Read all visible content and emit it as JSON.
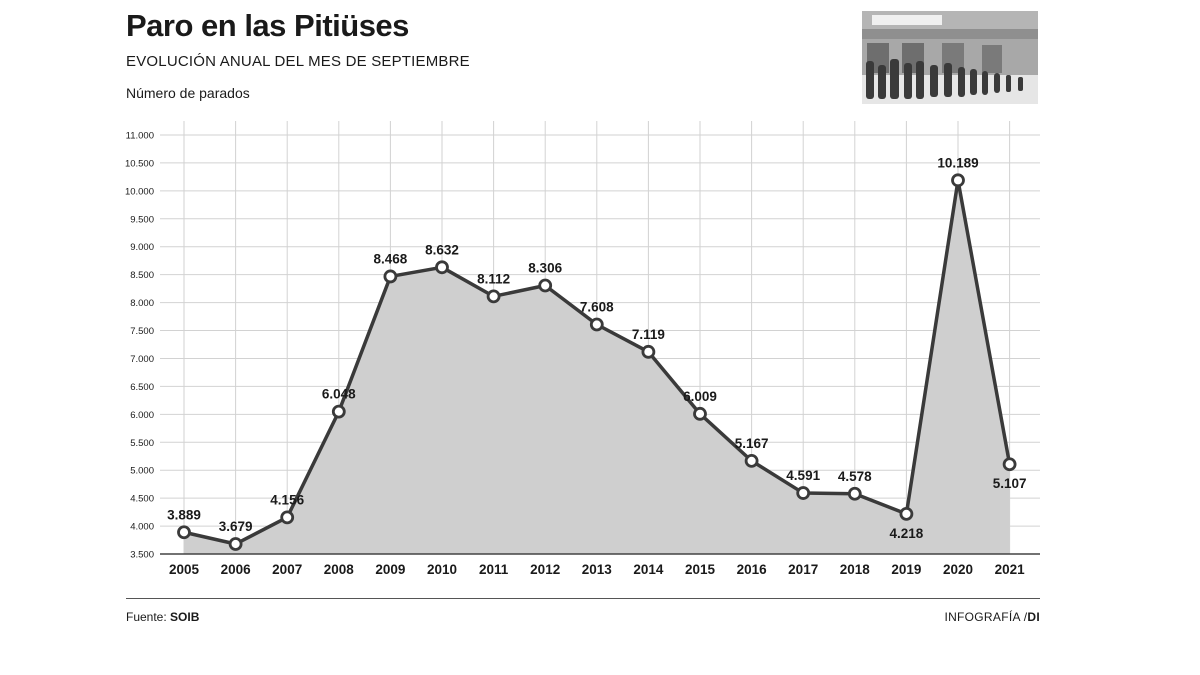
{
  "header": {
    "title": "Paro en las Pitiüses",
    "subtitle": "EVOLUCIÓN ANUAL DEL MES DE SEPTIEMBRE",
    "ylabel": "Número de parados"
  },
  "footer": {
    "source_label": "Fuente:",
    "source_value": "SOIB",
    "credit_label": "INFOGRAFÍA /",
    "credit_value": "DI"
  },
  "photo": {
    "icon": "queue-photo-icon"
  },
  "colors": {
    "line": "#3a3a3a",
    "area": "#cfcfcf",
    "grid": "#d2d2d2",
    "marker_fill": "#ffffff",
    "text": "#1a1a1a"
  },
  "chart_data": {
    "type": "area",
    "title": "Paro en las Pitiüses",
    "subtitle": "EVOLUCIÓN ANUAL DEL MES DE SEPTIEMBRE",
    "ylabel": "Número de parados",
    "xlabel": "",
    "categories": [
      "2005",
      "2006",
      "2007",
      "2008",
      "2009",
      "2010",
      "2011",
      "2012",
      "2013",
      "2014",
      "2015",
      "2016",
      "2017",
      "2018",
      "2019",
      "2020",
      "2021"
    ],
    "values": [
      3889,
      3679,
      4156,
      6048,
      8468,
      8632,
      8112,
      8306,
      7608,
      7119,
      6009,
      5167,
      4591,
      4578,
      4218,
      10189,
      5107
    ],
    "value_labels": [
      "3.889",
      "3.679",
      "4.156",
      "6.048",
      "8.468",
      "8.632",
      "8.112",
      "8.306",
      "7.608",
      "7.119",
      "6.009",
      "5.167",
      "4.591",
      "4.578",
      "4.218",
      "10.189",
      "5.107"
    ],
    "label_position": [
      "above",
      "above",
      "above",
      "above",
      "above",
      "above",
      "above",
      "above",
      "above",
      "above",
      "above",
      "above",
      "above",
      "above",
      "below",
      "above",
      "below"
    ],
    "ylim": [
      3500,
      11000
    ],
    "yticks": [
      3500,
      4000,
      4500,
      5000,
      5500,
      6000,
      6500,
      7000,
      7500,
      8000,
      8500,
      9000,
      9500,
      10000,
      10500,
      11000
    ],
    "ytick_labels": [
      "3.500",
      "4.000",
      "4.500",
      "5.000",
      "5.500",
      "6.000",
      "6.500",
      "7.000",
      "7.500",
      "8.000",
      "8.500",
      "9.000",
      "9.500",
      "10.000",
      "10.500",
      "11.000"
    ],
    "grid": true,
    "legend": "none"
  }
}
